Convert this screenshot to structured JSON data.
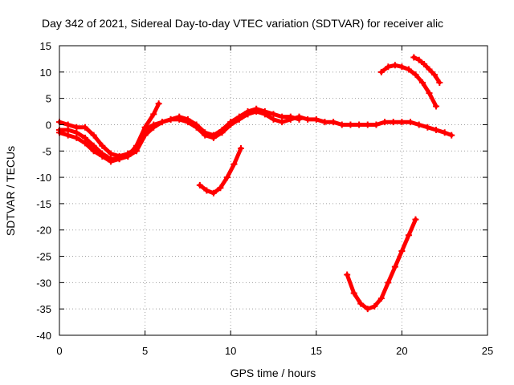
{
  "chart_data": {
    "type": "scatter",
    "title": "Day 342 of 2021, Sidereal Day-to-day VTEC variation (SDTVAR) for receiver alic",
    "xlabel": "GPS time / hours",
    "ylabel": "SDTVAR / TECUs",
    "xlim": [
      0,
      25
    ],
    "ylim": [
      -40,
      15
    ],
    "xticks": [
      0,
      5,
      10,
      15,
      20,
      25
    ],
    "yticks": [
      -40,
      -35,
      -30,
      -25,
      -20,
      -15,
      -10,
      -5,
      0,
      5,
      10,
      15
    ],
    "grid": true,
    "marker": "plus",
    "color": "#ff0000",
    "series": [
      {
        "name": "arc-1",
        "x": [
          0,
          0.5,
          1,
          1.5,
          2,
          2.5,
          3,
          3.5,
          4,
          4.5,
          5,
          5.5,
          6,
          6.5,
          7,
          7.5,
          8,
          8.5,
          9,
          9.5,
          10,
          10.5,
          11,
          11.5,
          12,
          12.5,
          13,
          13.5,
          14
        ],
        "y": [
          0.5,
          0,
          -0.5,
          -0.5,
          -2,
          -4,
          -5.5,
          -6,
          -5.5,
          -4.5,
          -1,
          0,
          0.5,
          1,
          1.5,
          1,
          0,
          -1.5,
          -2,
          -1,
          0.5,
          1.5,
          2.5,
          3,
          2.5,
          2,
          1.5,
          1.5,
          1
        ]
      },
      {
        "name": "arc-2",
        "x": [
          0,
          0.5,
          1,
          1.5,
          2,
          2.5,
          3,
          3.5,
          4,
          4.5,
          5,
          5.5,
          6,
          6.5,
          7,
          7.5,
          8,
          8.5,
          9,
          9.5,
          10,
          10.5,
          11,
          11.5,
          12,
          12.5,
          13,
          13.5,
          14,
          14.5,
          15,
          15.5,
          16,
          16.5,
          17,
          17.5,
          18,
          18.5,
          19,
          19.5,
          20,
          20.5,
          21,
          21.5,
          22,
          22.5,
          22.9
        ],
        "y": [
          -1,
          -1,
          -1.5,
          -2.5,
          -4,
          -5.5,
          -6.5,
          -6.5,
          -6,
          -5,
          -2,
          -0.5,
          0.5,
          1,
          1,
          0.5,
          -0.5,
          -2,
          -2.5,
          -1.5,
          0,
          1,
          2,
          2.5,
          2,
          1,
          0.5,
          1,
          1.5,
          1,
          1,
          0.5,
          0.5,
          0,
          0,
          0,
          0,
          0,
          0.5,
          0.5,
          0.5,
          0.5,
          0,
          -0.5,
          -1,
          -1.5,
          -2
        ]
      },
      {
        "name": "arc-3",
        "x": [
          0,
          0.5,
          1,
          1.5,
          2,
          2.5,
          3,
          3.5,
          4,
          4.5,
          5,
          5.5,
          5.8
        ],
        "y": [
          -1.5,
          -2,
          -2.5,
          -3.5,
          -5,
          -6,
          -7,
          -6.5,
          -6,
          -4,
          -0.5,
          2,
          4
        ]
      },
      {
        "name": "arc-4",
        "x": [
          8.2,
          8.6,
          9,
          9.4,
          9.8,
          10.2,
          10.6
        ],
        "y": [
          -11.5,
          -12.5,
          -13,
          -12,
          -10,
          -7.5,
          -4.5
        ]
      },
      {
        "name": "arc-5",
        "x": [
          16.8,
          17.2,
          17.6,
          18,
          18.4,
          18.8,
          19.2,
          19.6,
          20,
          20.4,
          20.8
        ],
        "y": [
          -28.5,
          -32,
          -34,
          -35,
          -34.5,
          -33,
          -30,
          -27,
          -24,
          -21,
          -18
        ]
      },
      {
        "name": "arc-6",
        "x": [
          18.8,
          19.2,
          19.6,
          20,
          20.4,
          20.8,
          21.2,
          21.6,
          22
        ],
        "y": [
          10,
          11,
          11.3,
          11,
          10.5,
          9.5,
          8,
          6,
          3.5
        ]
      },
      {
        "name": "arc-7",
        "x": [
          20.7,
          21,
          21.3,
          21.6,
          21.9,
          22.2
        ],
        "y": [
          12.8,
          12.3,
          11.5,
          10.5,
          9.5,
          8
        ]
      }
    ]
  }
}
